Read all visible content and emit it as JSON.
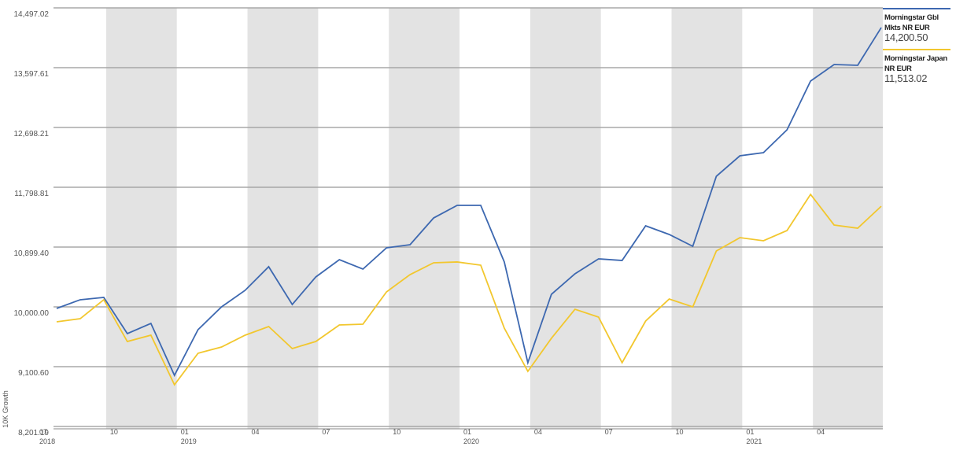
{
  "chart_data": {
    "type": "line",
    "y_axis_label": "10K Growth",
    "categories": [
      "07",
      null,
      null,
      "10",
      null,
      null,
      "01",
      null,
      null,
      "04",
      null,
      null,
      "07",
      null,
      null,
      "10",
      null,
      null,
      "01",
      null,
      null,
      "04",
      null,
      null,
      "07",
      null,
      null,
      "10",
      null,
      null,
      "01",
      null,
      null,
      "04",
      null,
      null
    ],
    "year_labels": [
      "2018",
      null,
      null,
      null,
      null,
      null,
      "2019",
      null,
      null,
      null,
      null,
      null,
      null,
      null,
      null,
      null,
      null,
      null,
      "2020",
      null,
      null,
      null,
      null,
      null,
      null,
      null,
      null,
      null,
      null,
      null,
      "2021",
      null,
      null,
      null,
      null,
      null
    ],
    "series": [
      {
        "name": "Morningstar Gbl Mkts NR EUR",
        "color": "#3d68b0",
        "last_value_label": "14,200.50",
        "values": [
          9976,
          10107,
          10142,
          9598,
          9751,
          8970,
          9657,
          10000,
          10249,
          10604,
          10036,
          10450,
          10710,
          10568,
          10888,
          10935,
          11337,
          11527,
          11527,
          10675,
          9160,
          10189,
          10497,
          10722,
          10698,
          11219,
          11089,
          10911,
          11964,
          12272,
          12319,
          12663,
          13396,
          13645,
          13633,
          14200.5
        ]
      },
      {
        "name": "Morningstar Japan NR EUR",
        "color": "#f2c72e",
        "last_value_label": "11,513.02",
        "values": [
          9775,
          9822,
          10107,
          9479,
          9574,
          8828,
          9302,
          9396,
          9574,
          9704,
          9373,
          9479,
          9728,
          9740,
          10225,
          10485,
          10663,
          10675,
          10627,
          9680,
          9030,
          9527,
          9964,
          9846,
          9160,
          9787,
          10118,
          10000,
          10840,
          11041,
          10994,
          11148,
          11692,
          11231,
          11183,
          11513.02
        ]
      }
    ],
    "ylim": [
      8201.19,
      14497.02
    ],
    "yticks": [
      {
        "value": 8201.19,
        "label": "8,201.19"
      },
      {
        "value": 9100.6,
        "label": "9,100.60"
      },
      {
        "value": 10000,
        "label": "10,000.00"
      },
      {
        "value": 10899.4,
        "label": "10,899.40"
      },
      {
        "value": 11798.81,
        "label": "11,798.81"
      },
      {
        "value": 12698.21,
        "label": "12,698.21"
      },
      {
        "value": 13597.61,
        "label": "13,597.61"
      },
      {
        "value": 14497.02,
        "label": "14,497.02"
      }
    ],
    "grid": true,
    "shaded_quarters": true,
    "legend": "right"
  }
}
